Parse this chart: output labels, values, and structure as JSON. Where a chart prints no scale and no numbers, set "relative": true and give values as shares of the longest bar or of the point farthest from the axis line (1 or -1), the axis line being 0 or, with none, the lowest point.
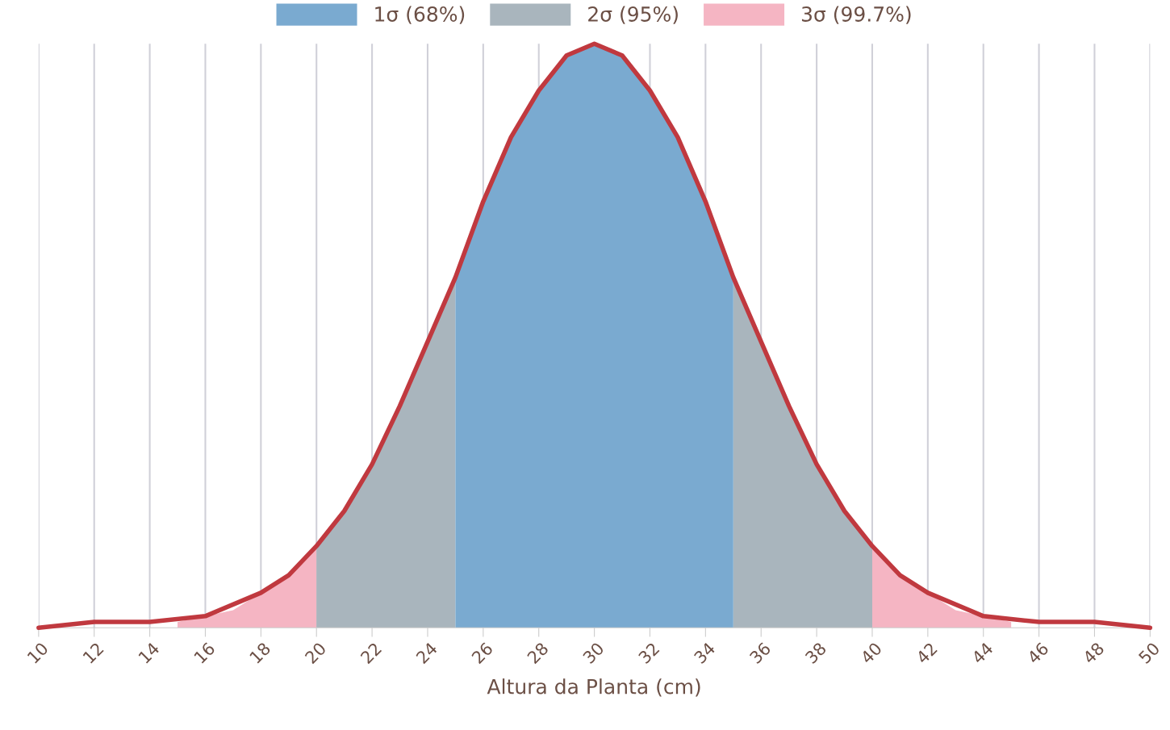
{
  "chart_data": {
    "type": "area",
    "relative": true,
    "xlabel": "Altura da Planta (cm)",
    "xlim": [
      10,
      50
    ],
    "xticks": [
      10,
      12,
      14,
      16,
      18,
      20,
      22,
      24,
      26,
      28,
      30,
      32,
      34,
      36,
      38,
      40,
      42,
      44,
      46,
      48,
      50
    ],
    "grid": "x",
    "legend": "top",
    "tick_labels": "x",
    "series": [
      {
        "name": "3σ (99.7%)",
        "color": "#f5b5c3",
        "x": [
          15,
          16,
          17,
          18,
          19,
          20,
          21,
          22,
          23,
          24,
          25,
          26,
          27,
          28,
          29,
          30,
          31,
          32,
          33,
          34,
          35,
          36,
          37,
          38,
          39,
          40,
          41,
          42,
          43,
          44,
          45
        ],
        "values": [
          0.01,
          0.02,
          0.03,
          0.06,
          0.09,
          0.14,
          null,
          null,
          null,
          null,
          null,
          null,
          null,
          null,
          null,
          null,
          null,
          null,
          null,
          null,
          null,
          null,
          null,
          null,
          null,
          0.14,
          0.09,
          0.06,
          0.03,
          0.02,
          0.01
        ]
      },
      {
        "name": "2σ (95%)",
        "color": "#a9b5bd",
        "x": [
          20,
          21,
          22,
          23,
          24,
          25,
          26,
          27,
          28,
          29,
          30,
          31,
          32,
          33,
          34,
          35,
          36,
          37,
          38,
          39,
          40
        ],
        "values": [
          0.14,
          0.2,
          0.28,
          0.38,
          0.49,
          0.6,
          null,
          null,
          null,
          null,
          null,
          null,
          null,
          null,
          null,
          0.6,
          0.49,
          0.38,
          0.28,
          0.2,
          0.14
        ]
      },
      {
        "name": "1σ (68%)",
        "color": "#7aaad0",
        "x": [
          25,
          26,
          27,
          28,
          29,
          30,
          31,
          32,
          33,
          34,
          35
        ],
        "values": [
          0.6,
          0.73,
          0.84,
          0.92,
          0.98,
          1,
          0.98,
          0.92,
          0.84,
          0.73,
          0.6
        ]
      },
      {
        "type": "line",
        "color": "#c0393f",
        "x": [
          10,
          12,
          14,
          16,
          18,
          19,
          20,
          21,
          22,
          23,
          24,
          25,
          26,
          27,
          28,
          29,
          30,
          31,
          32,
          33,
          34,
          35,
          36,
          37,
          38,
          39,
          40,
          41,
          42,
          44,
          46,
          48,
          50
        ],
        "values": [
          0,
          0.01,
          0.01,
          0.02,
          0.06,
          0.09,
          0.14,
          0.2,
          0.28,
          0.38,
          0.49,
          0.6,
          0.73,
          0.84,
          0.92,
          0.98,
          1,
          0.98,
          0.92,
          0.84,
          0.73,
          0.6,
          0.49,
          0.38,
          0.28,
          0.2,
          0.14,
          0.09,
          0.06,
          0.02,
          0.01,
          0.01,
          0
        ]
      }
    ]
  }
}
